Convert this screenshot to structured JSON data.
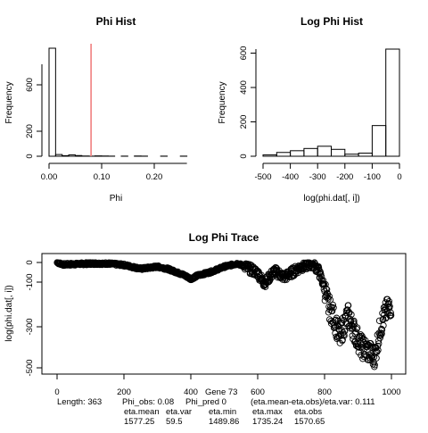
{
  "charts": [
    {
      "title": "Phi Hist",
      "xlabel": "Phi",
      "ylabel": "Frequency",
      "xticks": [
        "0.00",
        "0.10",
        "0.20"
      ],
      "yticks": [
        "0",
        "200",
        "600"
      ]
    },
    {
      "title": "Log Phi Hist",
      "xlabel": "log(phi.dat[, i])",
      "ylabel": "Frequency",
      "xticks": [
        "-500",
        "-400",
        "-300",
        "-200",
        "-100",
        "0"
      ],
      "yticks": [
        "0",
        "200",
        "400",
        "600"
      ]
    },
    {
      "title": "Log Phi Trace",
      "xlabel": "",
      "ylabel": "log(phi.dat[, i])",
      "xticks": [
        "0",
        "200",
        "400",
        "600",
        "800",
        "1000"
      ],
      "yticks": [
        "-500",
        "-300",
        "-100",
        "0"
      ]
    }
  ],
  "chart_data": [
    {
      "type": "bar",
      "title": "Phi Hist",
      "xlabel": "Phi",
      "ylabel": "Frequency",
      "bin_edges": [
        0.0,
        0.0125,
        0.025,
        0.0375,
        0.05,
        0.0625,
        0.075,
        0.0875,
        0.1,
        0.1125,
        0.125,
        0.1375,
        0.15,
        0.1625,
        0.175,
        0.1875,
        0.2,
        0.2125,
        0.225,
        0.2375,
        0.25,
        0.2625
      ],
      "values": [
        955,
        15,
        5,
        12,
        6,
        2,
        1,
        3,
        2,
        1,
        0,
        1,
        0,
        2,
        1,
        0,
        0,
        1,
        0,
        0,
        1
      ],
      "xlim": [
        0.0,
        0.2625
      ],
      "ylim": [
        0,
        955
      ],
      "reference_line": {
        "x": 0.08,
        "color": "#f08080"
      },
      "grid": false
    },
    {
      "type": "bar",
      "title": "Log Phi Hist",
      "xlabel": "log(phi.dat[, i])",
      "ylabel": "Frequency",
      "bin_edges": [
        -500,
        -450,
        -400,
        -350,
        -300,
        -250,
        -200,
        -150,
        -100,
        -50,
        0
      ],
      "values": [
        8,
        22,
        32,
        45,
        58,
        40,
        12,
        18,
        178,
        622
      ],
      "xlim": [
        -500,
        0
      ],
      "ylim": [
        0,
        622
      ],
      "grid": false
    },
    {
      "type": "scatter",
      "title": "Log Phi Trace",
      "xlabel": "",
      "ylabel": "log(phi.dat[, i])",
      "n": 1000,
      "xlim": [
        0,
        1000
      ],
      "ylim": [
        -500,
        0
      ],
      "marker": "open-circle",
      "trace_anchors": [
        [
          0,
          0
        ],
        [
          20,
          -10
        ],
        [
          50,
          -8
        ],
        [
          100,
          -5
        ],
        [
          150,
          -5
        ],
        [
          200,
          -12
        ],
        [
          250,
          -30
        ],
        [
          300,
          -20
        ],
        [
          330,
          -30
        ],
        [
          380,
          -60
        ],
        [
          400,
          -78
        ],
        [
          420,
          -62
        ],
        [
          460,
          -45
        ],
        [
          500,
          -20
        ],
        [
          540,
          -5
        ],
        [
          570,
          -25
        ],
        [
          600,
          -50
        ],
        [
          620,
          -100
        ],
        [
          650,
          -40
        ],
        [
          680,
          -70
        ],
        [
          700,
          -50
        ],
        [
          730,
          -20
        ],
        [
          760,
          -5
        ],
        [
          780,
          -30
        ],
        [
          800,
          -120
        ],
        [
          810,
          -200
        ],
        [
          830,
          -270
        ],
        [
          845,
          -360
        ],
        [
          855,
          -310
        ],
        [
          870,
          -250
        ],
        [
          890,
          -330
        ],
        [
          910,
          -400
        ],
        [
          930,
          -420
        ],
        [
          950,
          -450
        ],
        [
          965,
          -320
        ],
        [
          975,
          -270
        ],
        [
          985,
          -230
        ],
        [
          1000,
          -200
        ]
      ],
      "grid": false
    }
  ],
  "footer": {
    "length": "Length: 363",
    "phi_obs": "Phi_obs: 0.08",
    "phi_pred": "Phi_pred 0",
    "gene": "Gene 73",
    "ratio": "(eta.mean-eta.obs)/eta.var: 0.111",
    "eta_mean_label": "eta.mean",
    "eta_var_label": "eta.var",
    "eta_min_label": "eta.min",
    "eta_max_label": "eta.max",
    "eta_obs_label": "eta.obs",
    "eta_mean": "1577.25",
    "eta_var": "59.5",
    "eta_min": "1489.86",
    "eta_max": "1735.24",
    "eta_obs": "1570.65"
  }
}
